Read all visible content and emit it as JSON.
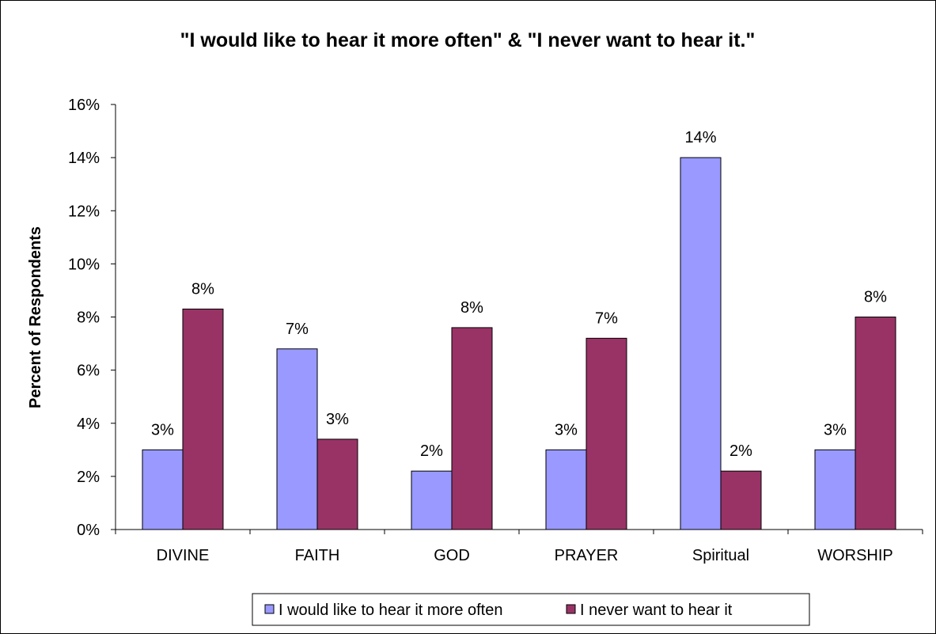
{
  "chart_data": {
    "type": "bar",
    "title": "\"I would like to hear it more often\" & \"I never want to hear it.\"",
    "xlabel": "",
    "ylabel": "Percent of Respondents",
    "categories": [
      "DIVINE",
      "FAITH",
      "GOD",
      "PRAYER",
      "Spiritual",
      "WORSHIP"
    ],
    "series": [
      {
        "name": "I would like to hear it more often",
        "color": "#9999ff",
        "values": [
          3.0,
          6.8,
          2.2,
          3.0,
          14.0,
          3.0
        ],
        "labels": [
          "3%",
          "7%",
          "2%",
          "3%",
          "14%",
          "3%"
        ]
      },
      {
        "name": "I never want to hear it",
        "color": "#993366",
        "values": [
          8.3,
          3.4,
          7.6,
          7.2,
          2.2,
          8.0
        ],
        "labels": [
          "8%",
          "3%",
          "8%",
          "7%",
          "2%",
          "8%"
        ]
      }
    ],
    "ylim": [
      0,
      16
    ],
    "yticks": [
      0,
      2,
      4,
      6,
      8,
      10,
      12,
      14,
      16
    ],
    "ytick_labels": [
      "0%",
      "2%",
      "4%",
      "6%",
      "8%",
      "10%",
      "12%",
      "14%",
      "16%"
    ],
    "grid": false,
    "legend_position": "bottom"
  }
}
